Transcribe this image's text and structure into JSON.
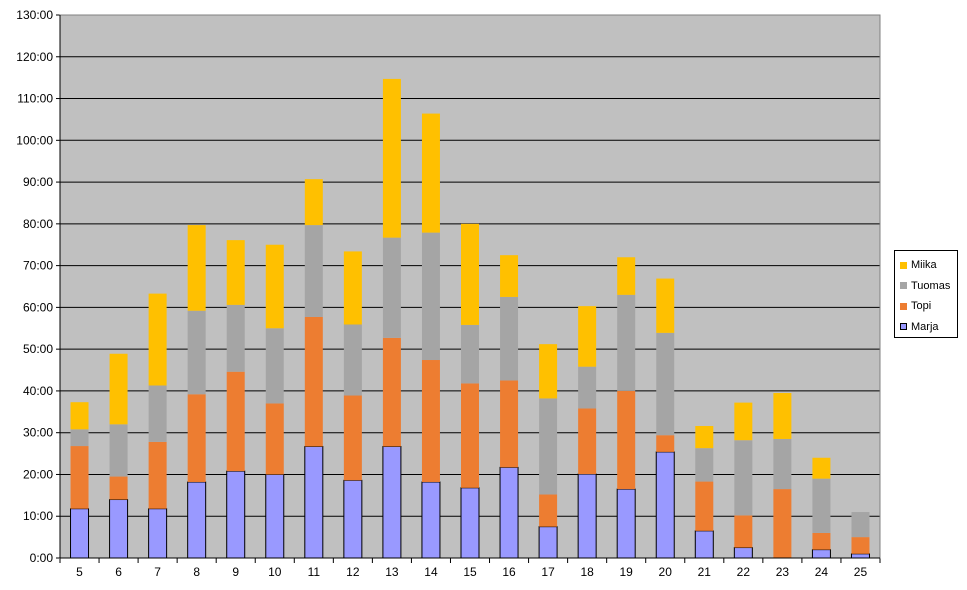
{
  "chart_data": {
    "type": "bar",
    "stacked": true,
    "title": "",
    "xlabel": "",
    "ylabel": "",
    "categories": [
      "5",
      "6",
      "7",
      "8",
      "9",
      "10",
      "11",
      "12",
      "13",
      "14",
      "15",
      "16",
      "17",
      "18",
      "19",
      "20",
      "21",
      "22",
      "23",
      "24",
      "25"
    ],
    "ylim": [
      0,
      130
    ],
    "y_ticks": [
      "0:00",
      "10:00",
      "20:00",
      "30:00",
      "40:00",
      "50:00",
      "60:00",
      "70:00",
      "80:00",
      "90:00",
      "100:00",
      "110:00",
      "120:00",
      "130:00"
    ],
    "grid": true,
    "legend_position": "right",
    "plot_background": "#c0c0c0",
    "series": [
      {
        "name": "Marja",
        "color": "#9999ff",
        "values": [
          11.8,
          14.0,
          11.8,
          18.2,
          20.8,
          20.0,
          26.7,
          18.6,
          26.7,
          18.2,
          16.8,
          21.7,
          7.5,
          20.1,
          16.5,
          25.4,
          6.5,
          2.5,
          0.0,
          2.0,
          1.0
        ]
      },
      {
        "name": "Topi",
        "color": "#ed7d31",
        "values": [
          15.0,
          5.5,
          16.0,
          21.0,
          23.8,
          17.0,
          31.0,
          20.3,
          26.0,
          29.2,
          25.0,
          20.8,
          7.7,
          15.7,
          23.5,
          4.0,
          11.8,
          7.7,
          16.5,
          4.0,
          4.0
        ]
      },
      {
        "name": "Tuomas",
        "color": "#a5a5a5",
        "values": [
          4.0,
          12.5,
          13.5,
          20.0,
          16.0,
          18.0,
          22.0,
          17.0,
          24.0,
          30.5,
          14.0,
          20.0,
          23.0,
          10.0,
          23.0,
          24.5,
          8.0,
          18.0,
          12.0,
          13.0,
          6.0
        ]
      },
      {
        "name": "Miika",
        "color": "#ffc000",
        "values": [
          6.5,
          16.9,
          22.0,
          20.5,
          15.5,
          20.0,
          11.0,
          17.5,
          38.0,
          28.5,
          24.2,
          10.0,
          13.0,
          14.5,
          9.0,
          13.0,
          5.3,
          9.0,
          11.0,
          5.0,
          0.0
        ]
      }
    ]
  }
}
